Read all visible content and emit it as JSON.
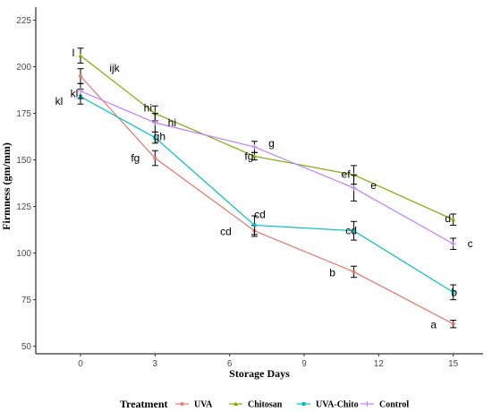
{
  "chart_data": {
    "type": "line",
    "x": [
      0,
      3,
      7,
      11,
      15
    ],
    "x_ticks": [
      "0",
      "3",
      "6",
      "9",
      "12",
      "15"
    ],
    "y_ticks": [
      "50",
      "75",
      "100",
      "125",
      "150",
      "175",
      "200",
      "225"
    ],
    "xlim": [
      -1.8,
      16.2
    ],
    "ylim": [
      46,
      232
    ],
    "xlabel": "Storage Days",
    "ylabel": "Firmness (gm/mm)",
    "grid": false,
    "legend_position": "bottom",
    "legend_title": "Treatment",
    "series": [
      {
        "name": "UVA",
        "color": "#e8776a",
        "marker": "circle",
        "values": [
          195,
          151,
          112,
          90,
          62
        ],
        "errors": [
          4,
          4,
          3,
          3,
          2
        ],
        "letters": [
          "ijk",
          "fg",
          "cd",
          "b",
          "a"
        ]
      },
      {
        "name": "Chitosan",
        "color": "#7cae00",
        "marker": "triangle",
        "values": [
          206,
          175,
          152,
          142,
          118
        ],
        "errors": [
          4,
          4,
          2,
          5,
          3
        ],
        "letters": [
          "l",
          "hi",
          "fg",
          "ef",
          "d"
        ]
      },
      {
        "name": "UVA-Chito",
        "color": "#00bfc4",
        "marker": "square",
        "values": [
          184,
          162,
          115,
          112,
          79
        ],
        "errors": [
          4,
          3,
          5,
          5,
          4
        ],
        "letters": [
          "kl",
          "gh",
          "cd",
          "cd",
          "b"
        ]
      },
      {
        "name": "Control",
        "color": "#c77cff",
        "marker": "plus",
        "values": [
          187,
          170,
          157,
          135,
          105
        ],
        "errors": [
          4,
          5,
          3,
          7,
          3
        ],
        "letters": [
          "kl",
          "hi",
          "g",
          "e",
          "c"
        ]
      }
    ]
  }
}
